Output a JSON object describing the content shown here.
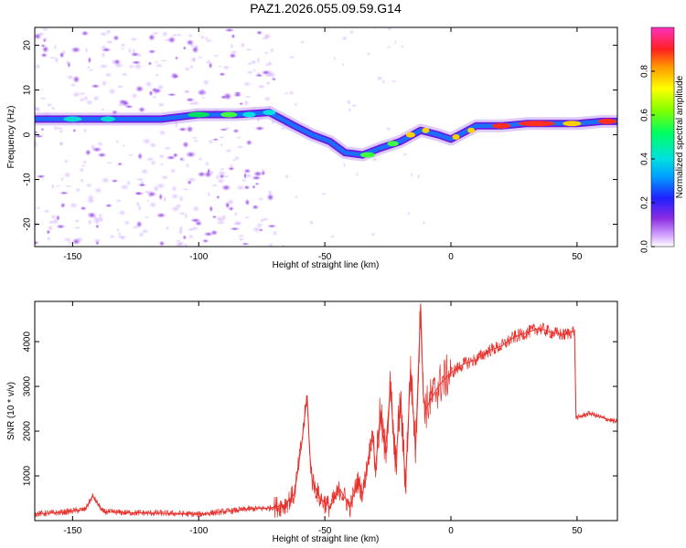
{
  "title": "PAZ1.2026.055.09.59.G14",
  "chart_data": [
    {
      "type": "heatmap",
      "name": "spectrogram",
      "xlabel": "Height of straight line (km)",
      "ylabel": "Frequency (Hz)",
      "xlim": [
        -165,
        66
      ],
      "ylim": [
        -25,
        24
      ],
      "xticks": [
        -150,
        -100,
        -50,
        0,
        50
      ],
      "yticks": [
        -20,
        -10,
        0,
        10,
        20
      ],
      "colorbar": {
        "label": "Normalized spectral amplitude",
        "range": [
          0,
          1
        ],
        "ticks": [
          0.0,
          0.2,
          0.4,
          0.6,
          0.8
        ]
      },
      "main_trace": {
        "x": [
          -165,
          -150,
          -130,
          -115,
          -100,
          -85,
          -72,
          -62,
          -55,
          -48,
          -42,
          -35,
          -28,
          -20,
          -12,
          -5,
          0,
          5,
          10,
          15,
          20,
          30,
          40,
          50,
          60,
          66
        ],
        "y": [
          3.5,
          3.5,
          3.5,
          3.5,
          4.5,
          4.5,
          5,
          2,
          0,
          -1.5,
          -4,
          -4.5,
          -3,
          -1.5,
          1,
          0,
          -1,
          0.5,
          2,
          2,
          2,
          2.5,
          2.5,
          2.5,
          3,
          3
        ]
      }
    },
    {
      "type": "line",
      "name": "snr",
      "xlabel": "Height of straight line (km)",
      "ylabel": "SNR (10 * v/v)",
      "xlim": [
        -165,
        66
      ],
      "ylim": [
        0,
        4900
      ],
      "xticks": [
        -150,
        -100,
        -50,
        0,
        50
      ],
      "yticks": [
        1000,
        2000,
        3000,
        4000
      ],
      "series": [
        {
          "name": "SNR",
          "color": "#e8312c",
          "x": [
            -165,
            -155,
            -145,
            -142,
            -138,
            -130,
            -120,
            -110,
            -100,
            -90,
            -80,
            -72,
            -66,
            -62,
            -59,
            -57,
            -56,
            -55,
            -52,
            -48,
            -44,
            -40,
            -37,
            -35,
            -33,
            -31,
            -30,
            -28,
            -26,
            -24,
            -22,
            -20,
            -18,
            -16,
            -14,
            -12,
            -11,
            -10,
            -8,
            -5,
            -2,
            0,
            5,
            10,
            15,
            20,
            25,
            30,
            35,
            40,
            45,
            49,
            49.6,
            50,
            55,
            60,
            66
          ],
          "y": [
            150,
            180,
            250,
            550,
            200,
            180,
            170,
            160,
            140,
            200,
            260,
            280,
            350,
            600,
            1800,
            2800,
            1500,
            900,
            500,
            300,
            700,
            300,
            900,
            600,
            1300,
            2000,
            1100,
            2400,
            1500,
            3000,
            1200,
            2700,
            800,
            3400,
            1600,
            4850,
            2800,
            2500,
            2700,
            3000,
            3200,
            3300,
            3500,
            3600,
            3800,
            3900,
            4100,
            4200,
            4300,
            4200,
            4150,
            4250,
            2300,
            2300,
            2400,
            2300,
            2200
          ]
        }
      ]
    }
  ]
}
